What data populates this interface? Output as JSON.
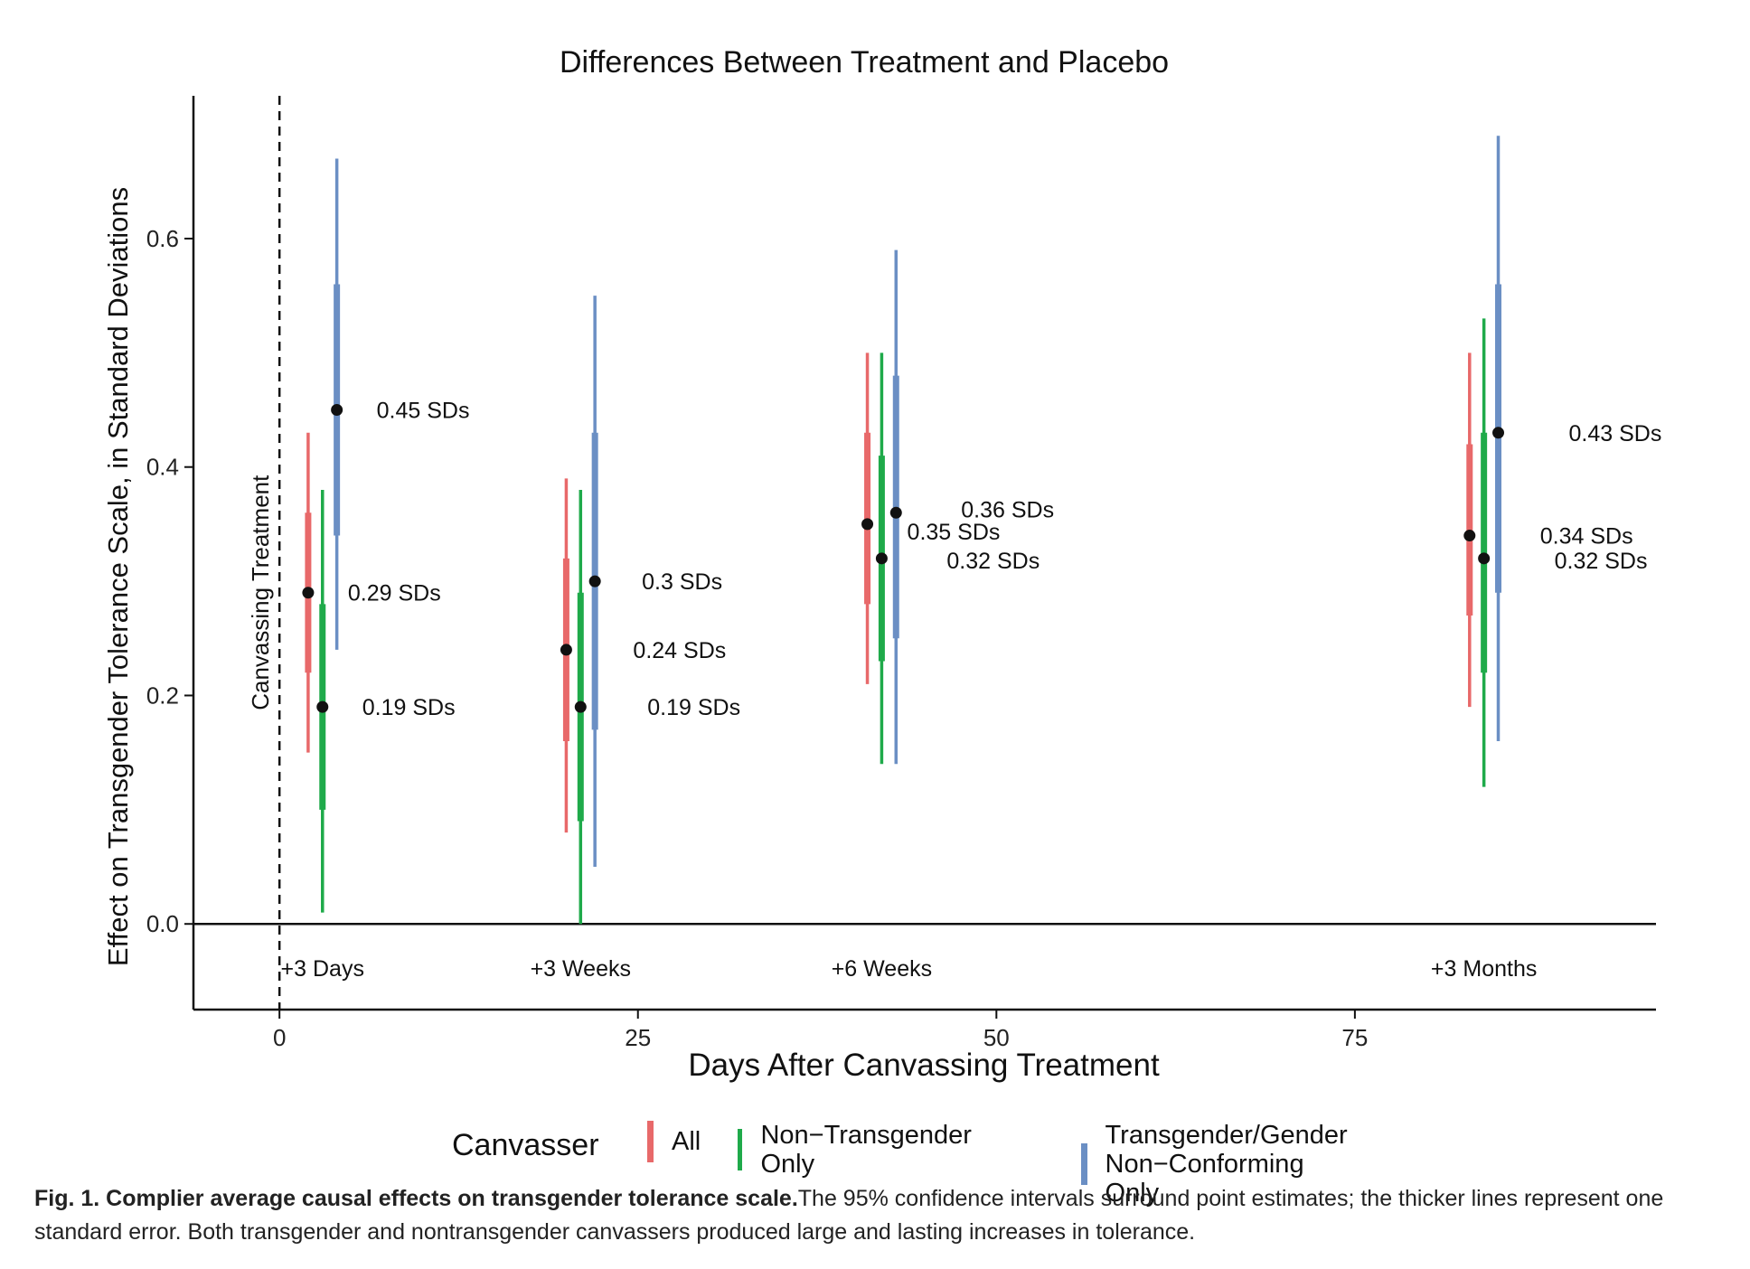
{
  "chart_data": {
    "type": "scatter",
    "title": "Differences Between Treatment and Placebo",
    "xlabel": "Days After Canvassing Treatment",
    "ylabel": "Effect on Transgender Tolerance Scale, in Standard Deviations",
    "xlim": [
      -6,
      96
    ],
    "ylim": [
      -0.075,
      0.725
    ],
    "xticks": [
      "0",
      "25",
      "50",
      "75"
    ],
    "yticks": [
      "0.0",
      "0.2",
      "0.4",
      "0.6"
    ],
    "vline": {
      "x": 0,
      "style": "dashed",
      "label": "Canvassing Treatment"
    },
    "hline": {
      "y": 0
    },
    "timepoints": [
      {
        "label": "+3 Days",
        "x": 3
      },
      {
        "label": "+3 Weeks",
        "x": 21
      },
      {
        "label": "+6 Weeks",
        "x": 42
      },
      {
        "label": "+3 Months",
        "x": 84
      }
    ],
    "legend_title": "Canvasser",
    "series": [
      {
        "name": "All",
        "color": "#E8696A",
        "points": [
          {
            "x": 2,
            "estimate": 0.29,
            "se_low": 0.22,
            "se_high": 0.36,
            "ci_low": 0.15,
            "ci_high": 0.43,
            "label": "0.29 SDs"
          },
          {
            "x": 20,
            "estimate": 0.24,
            "se_low": 0.16,
            "se_high": 0.32,
            "ci_low": 0.08,
            "ci_high": 0.39,
            "label": "0.24 SDs"
          },
          {
            "x": 41,
            "estimate": 0.35,
            "se_low": 0.28,
            "se_high": 0.43,
            "ci_low": 0.21,
            "ci_high": 0.5,
            "label": "0.35 SDs"
          },
          {
            "x": 83,
            "estimate": 0.34,
            "se_low": 0.27,
            "se_high": 0.42,
            "ci_low": 0.19,
            "ci_high": 0.5,
            "label": "0.34 SDs"
          }
        ]
      },
      {
        "name": "Non−Transgender Only",
        "color": "#1FAA4A",
        "points": [
          {
            "x": 3,
            "estimate": 0.19,
            "se_low": 0.1,
            "se_high": 0.28,
            "ci_low": 0.01,
            "ci_high": 0.38,
            "label": "0.19 SDs"
          },
          {
            "x": 21,
            "estimate": 0.19,
            "se_low": 0.09,
            "se_high": 0.29,
            "ci_low": 0.0,
            "ci_high": 0.38,
            "label": "0.19 SDs"
          },
          {
            "x": 42,
            "estimate": 0.32,
            "se_low": 0.23,
            "se_high": 0.41,
            "ci_low": 0.14,
            "ci_high": 0.5,
            "label": "0.32 SDs"
          },
          {
            "x": 84,
            "estimate": 0.32,
            "se_low": 0.22,
            "se_high": 0.43,
            "ci_low": 0.12,
            "ci_high": 0.53,
            "label": "0.32 SDs"
          }
        ]
      },
      {
        "name": "Transgender/Gender\nNon−Conforming Only",
        "color": "#6B8FC4",
        "points": [
          {
            "x": 4,
            "estimate": 0.45,
            "se_low": 0.34,
            "se_high": 0.56,
            "ci_low": 0.24,
            "ci_high": 0.67,
            "label": "0.45 SDs"
          },
          {
            "x": 22,
            "estimate": 0.3,
            "se_low": 0.17,
            "se_high": 0.43,
            "ci_low": 0.05,
            "ci_high": 0.55,
            "label": "0.3 SDs"
          },
          {
            "x": 43,
            "estimate": 0.36,
            "se_low": 0.25,
            "se_high": 0.48,
            "ci_low": 0.14,
            "ci_high": 0.59,
            "label": "0.36 SDs"
          },
          {
            "x": 85,
            "estimate": 0.43,
            "se_low": 0.29,
            "se_high": 0.56,
            "ci_low": 0.16,
            "ci_high": 0.69,
            "label": "0.43 SDs"
          }
        ]
      }
    ]
  },
  "caption": {
    "bold": "Fig. 1. Complier average causal effects on transgender tolerance scale.",
    "text": "The 95% confidence intervals surround point estimates; the thicker lines represent one standard error. Both transgender and nontransgender canvassers produced large and lasting increases in tolerance."
  }
}
